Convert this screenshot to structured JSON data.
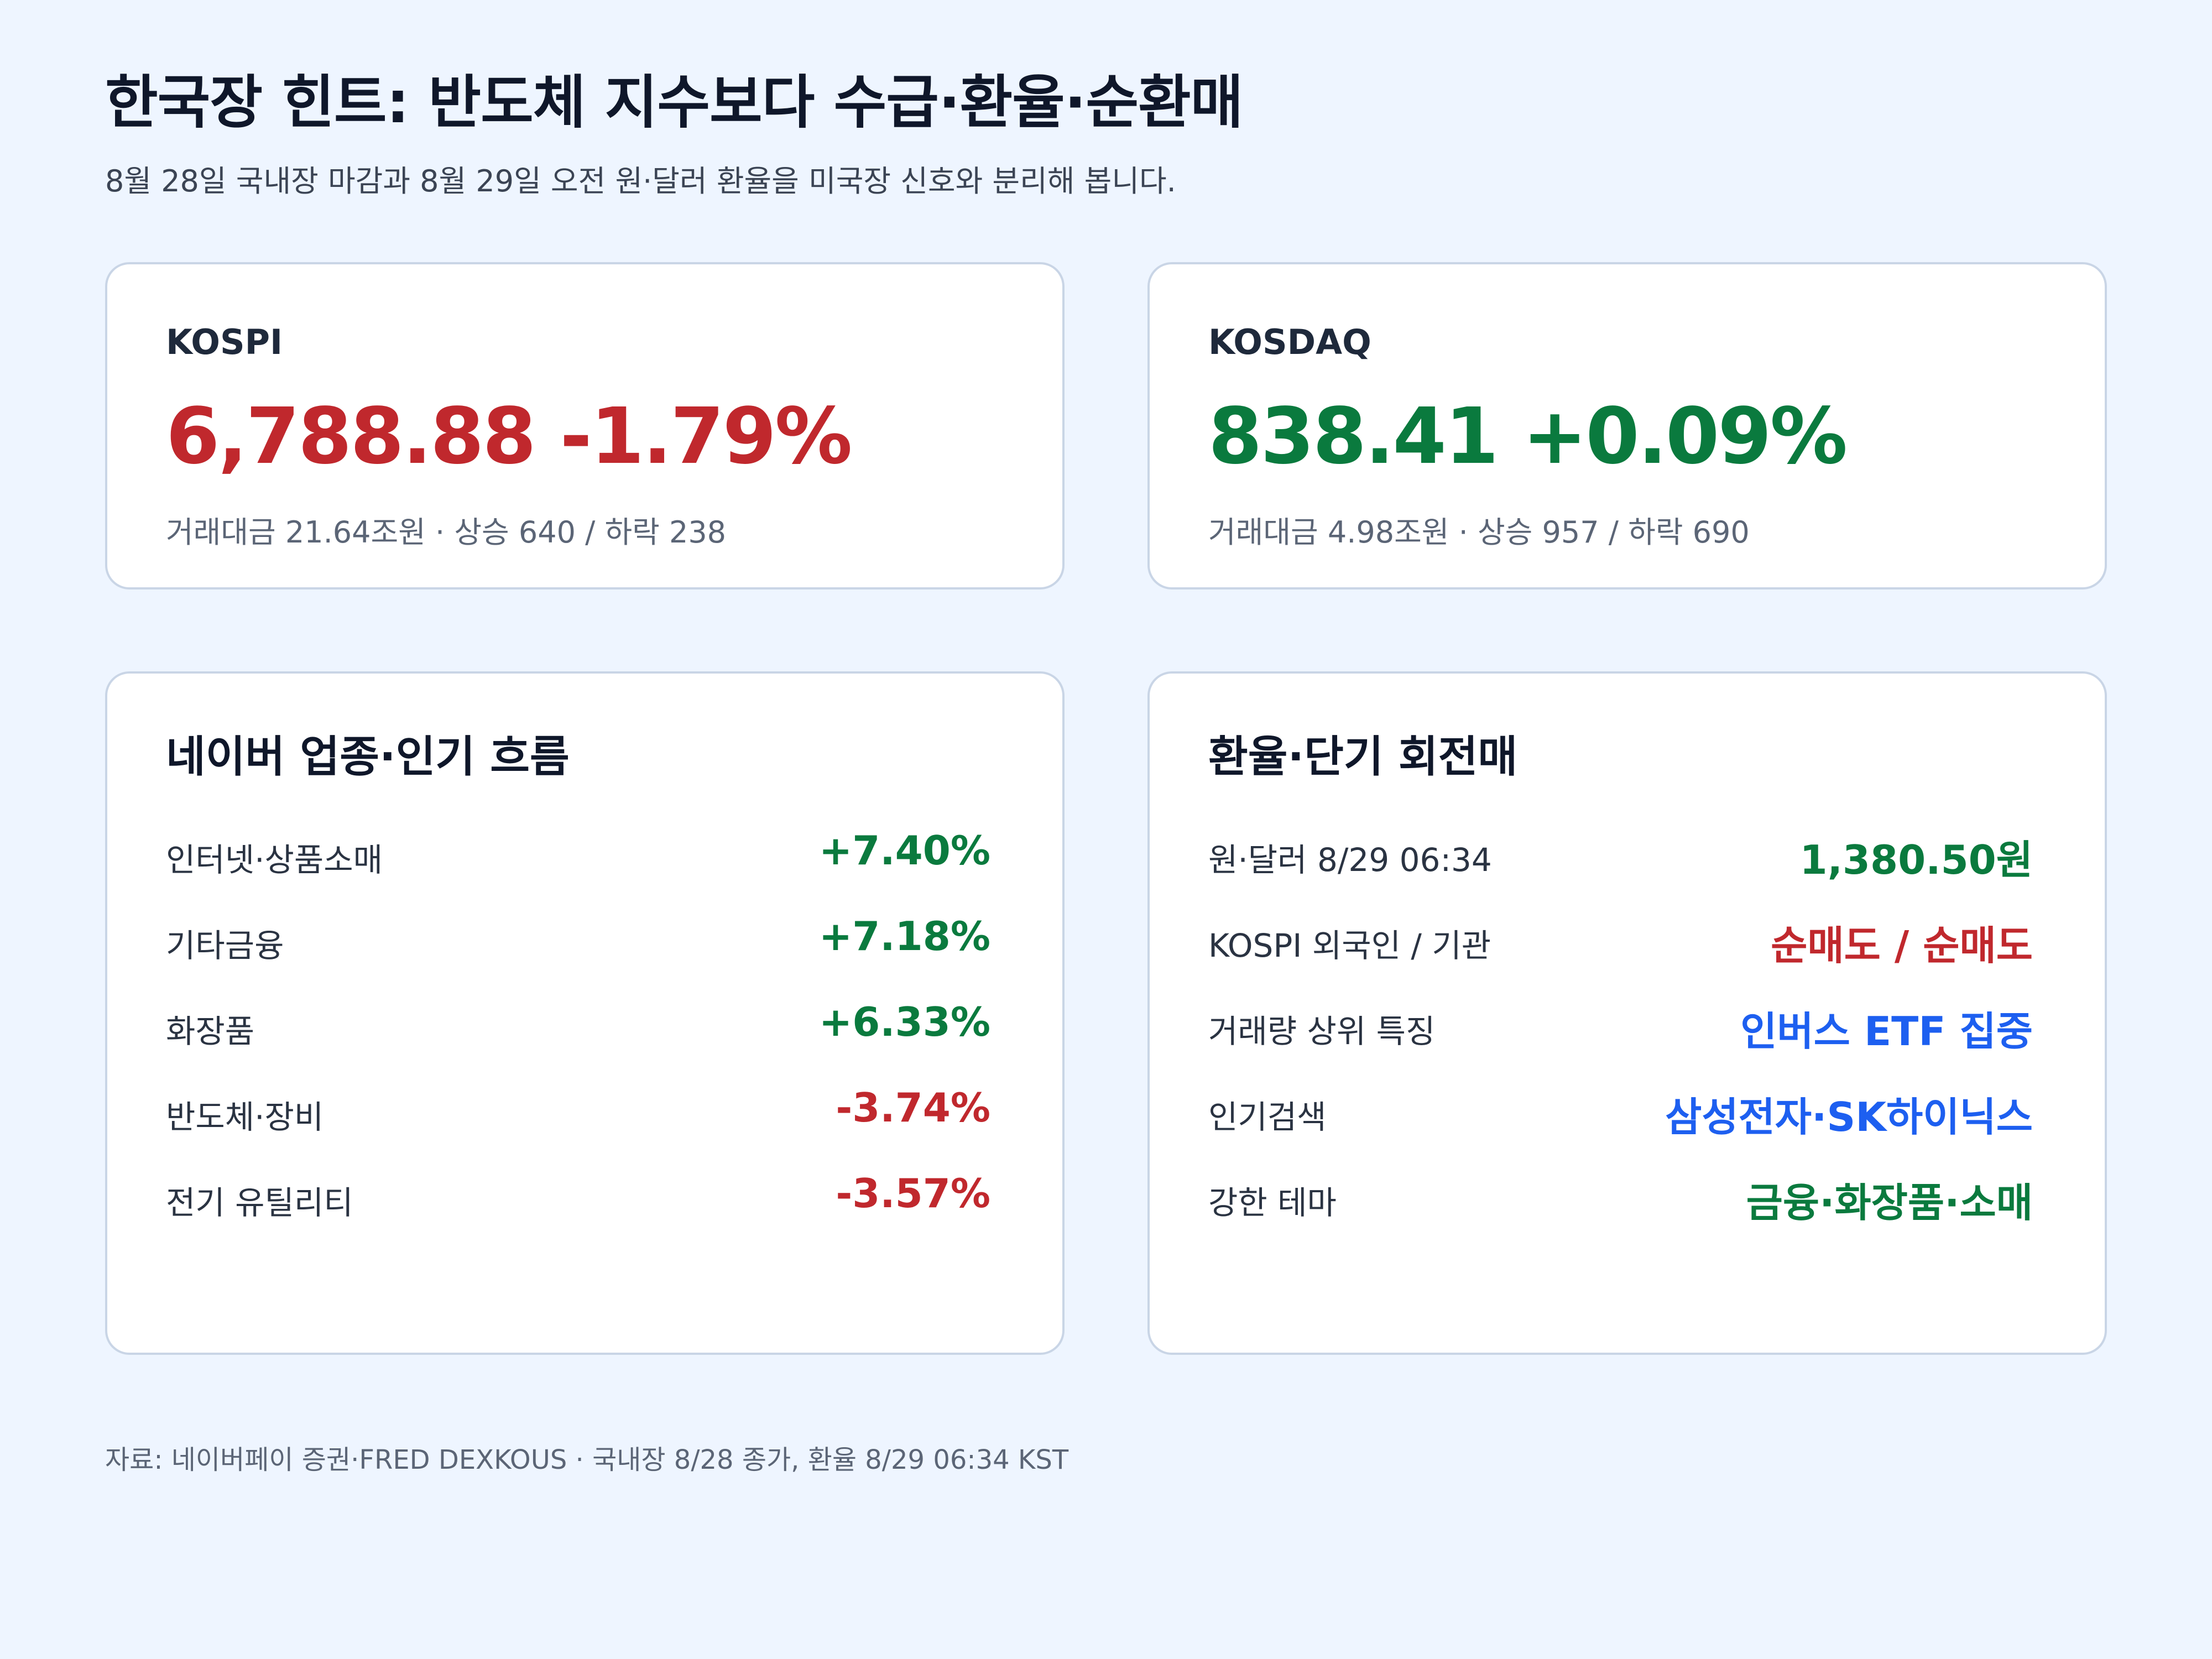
{
  "header": {
    "title": "한국장 힌트: 반도체 지수보다 수급·환율·순환매",
    "subtitle": "8월 28일 국내장 마감과 8월 29일 오전 원·달러 환율을 미국장 신호와 분리해 봅니다."
  },
  "kospi": {
    "name": "KOSPI",
    "value": "6,788.88 -1.79%",
    "meta": "거래대금 21.64조원 · 상승 640 / 하락 238"
  },
  "kosdaq": {
    "name": "KOSDAQ",
    "value": "838.41 +0.09%",
    "meta": "거래대금 4.98조원 · 상승 957 / 하락 690"
  },
  "sectors": {
    "title": "네이버 업종·인기 흐름",
    "rows": [
      {
        "label": "인터넷·상품소매",
        "value": "+7.40%",
        "tone": "up"
      },
      {
        "label": "기타금융",
        "value": "+7.18%",
        "tone": "up"
      },
      {
        "label": "화장품",
        "value": "+6.33%",
        "tone": "up"
      },
      {
        "label": "반도체·장비",
        "value": "-3.74%",
        "tone": "down"
      },
      {
        "label": "전기 유틸리티",
        "value": "-3.57%",
        "tone": "down"
      }
    ]
  },
  "fx": {
    "title": "환율·단기 회전매",
    "rows": [
      {
        "label": "원·달러 8/29 06:34",
        "value": "1,380.50원",
        "tone": "up"
      },
      {
        "label": "KOSPI 외국인 / 기관",
        "value": "순매도 / 순매도",
        "tone": "down"
      },
      {
        "label": "거래량 상위 특징",
        "value": "인버스 ETF 집중",
        "tone": "blue"
      },
      {
        "label": "인기검색",
        "value": "삼성전자·SK하이닉스",
        "tone": "blue"
      },
      {
        "label": "강한 테마",
        "value": "금융·화장품·소매",
        "tone": "up"
      }
    ]
  },
  "footer": {
    "text": "자료: 네이버페이 증권·FRED DEXKOUS · 국내장 8/28 종가, 환율 8/29 06:34 KST"
  },
  "colors": {
    "down": "#c0282d",
    "up": "#0a7a3e",
    "blue": "#1d5ff0",
    "background": "#eef5ff",
    "card_border": "#c9d5e6"
  }
}
